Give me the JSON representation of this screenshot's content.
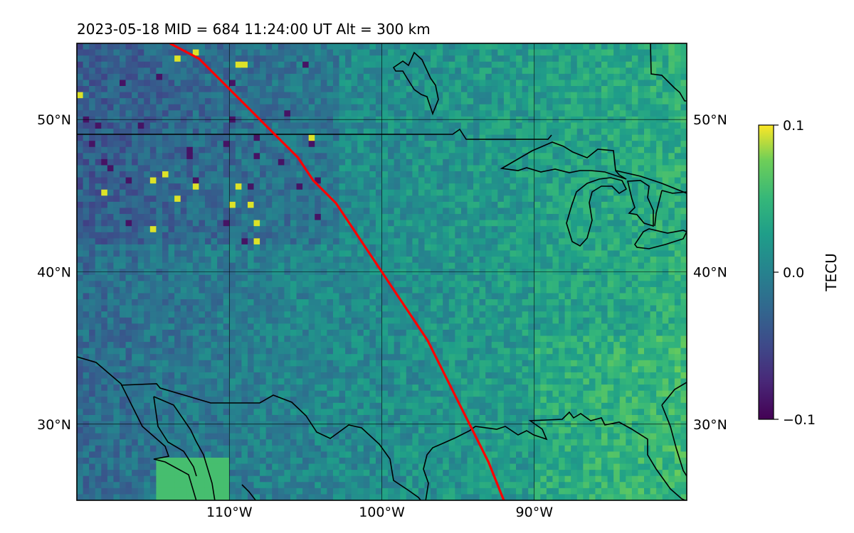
{
  "title": "2023-05-18  MID = 684    11:24:00  UT  Alt = 300 km",
  "map": {
    "lon_range": [
      -120,
      -80
    ],
    "lat_range": [
      25,
      55
    ],
    "lon_ticks": [
      {
        "value": -110,
        "label": "110°W"
      },
      {
        "value": -100,
        "label": "100°W"
      },
      {
        "value": -90,
        "label": "90°W"
      }
    ],
    "lat_ticks": [
      {
        "value": 50,
        "label": "50°N"
      },
      {
        "value": 40,
        "label": "40°N"
      },
      {
        "value": 30,
        "label": "30°N"
      }
    ],
    "gridlines": true,
    "track_color": "#ff0000",
    "coastline_color": "#000000"
  },
  "colorbar": {
    "label": "TECU",
    "colormap": "viridis",
    "range": [
      -0.1,
      0.1
    ],
    "ticks": [
      {
        "value": 0.1,
        "label": "0.1"
      },
      {
        "value": 0.0,
        "label": "0.0"
      },
      {
        "value": -0.1,
        "label": "−0.1"
      }
    ]
  },
  "chart_data": {
    "type": "heatmap",
    "title": "2023-05-18  MID = 684    11:24:00  UT  Alt = 300 km",
    "xlabel": "",
    "ylabel": "",
    "value_label": "TECU",
    "xlim": [
      -120,
      -80
    ],
    "ylim": [
      25,
      55
    ],
    "value_range": [
      -0.1,
      0.1
    ],
    "grid": true,
    "satellite_track": [
      [
        -113.9,
        55.0
      ],
      [
        -112.0,
        54.0
      ],
      [
        -110.0,
        52.0
      ],
      [
        -108.5,
        50.5
      ],
      [
        -107.0,
        49.0
      ],
      [
        -105.5,
        47.5
      ],
      [
        -104.5,
        46.0
      ],
      [
        -103.0,
        44.5
      ],
      [
        -102.0,
        43.0
      ],
      [
        -101.0,
        41.5
      ],
      [
        -100.0,
        40.0
      ],
      [
        -99.0,
        38.5
      ],
      [
        -98.0,
        37.0
      ],
      [
        -97.0,
        35.5
      ],
      [
        -96.0,
        33.5
      ],
      [
        -95.0,
        31.5
      ],
      [
        -94.0,
        29.5
      ],
      [
        -93.0,
        27.5
      ],
      [
        -92.0,
        25.0
      ]
    ]
  }
}
